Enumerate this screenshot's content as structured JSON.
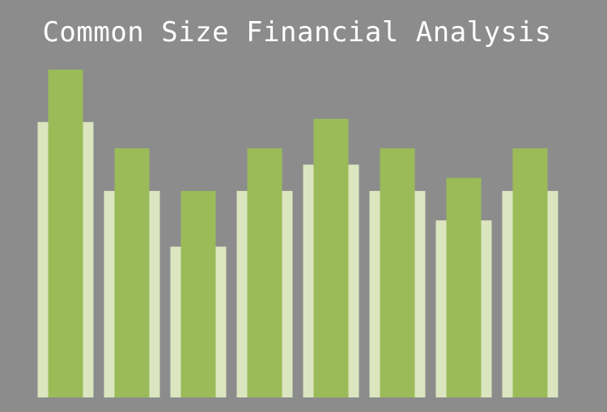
{
  "chart_data": {
    "type": "bar",
    "title": "Common Size Financial Analysis",
    "xlabel": "",
    "ylabel": "",
    "categories": [
      "",
      "",
      "",
      "",
      "",
      "",
      "",
      ""
    ],
    "ylim": [
      0,
      100
    ],
    "grid": false,
    "legend": "none",
    "series": [
      {
        "values": [
          84,
          63,
          46,
          63,
          71,
          63,
          54,
          63
        ],
        "color": "#dbe6c0"
      },
      {
        "values": [
          100,
          76,
          63,
          76,
          85,
          76,
          67,
          76
        ],
        "color": "#9bbb59"
      }
    ]
  }
}
